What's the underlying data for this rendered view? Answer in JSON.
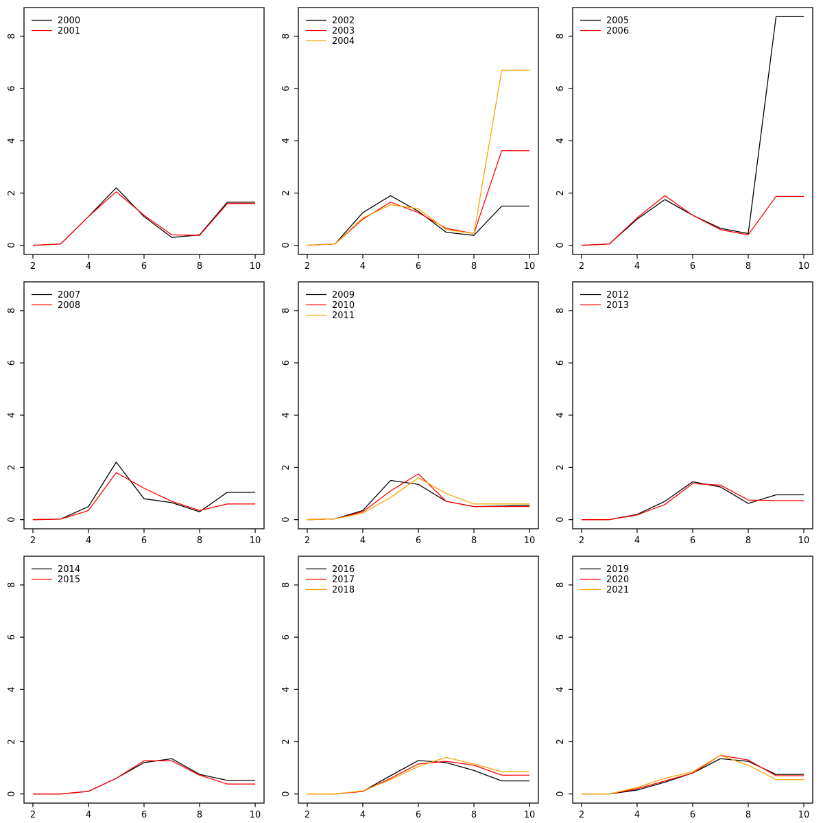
{
  "figure": {
    "background": "#ffffff",
    "axis_color": "#000000",
    "grid": "off",
    "panels": 9
  },
  "chart_data": [
    {
      "type": "line",
      "x": [
        2,
        3,
        4,
        5,
        6,
        7,
        8,
        9,
        10
      ],
      "xlim": [
        2,
        10
      ],
      "ylim": [
        0,
        8.75
      ],
      "x_ticks": [
        2,
        4,
        6,
        8,
        10
      ],
      "y_ticks": [
        0,
        2,
        4,
        6,
        8
      ],
      "legend_position": "topleft",
      "series": [
        {
          "name": "2000",
          "color": "#000000",
          "values": [
            0,
            0.05,
            1.1,
            2.2,
            1.1,
            0.3,
            0.4,
            1.65,
            1.65
          ]
        },
        {
          "name": "2001",
          "color": "#FF0000",
          "values": [
            0,
            0.05,
            1.1,
            2.05,
            1.15,
            0.4,
            0.38,
            1.6,
            1.6
          ]
        }
      ]
    },
    {
      "type": "line",
      "x": [
        2,
        3,
        4,
        5,
        6,
        7,
        8,
        9,
        10
      ],
      "xlim": [
        2,
        10
      ],
      "ylim": [
        0,
        8.75
      ],
      "x_ticks": [
        2,
        4,
        6,
        8,
        10
      ],
      "y_ticks": [
        0,
        2,
        4,
        6,
        8
      ],
      "legend_position": "topleft",
      "series": [
        {
          "name": "2002",
          "color": "#000000",
          "values": [
            0,
            0.05,
            1.25,
            1.9,
            1.3,
            0.5,
            0.38,
            1.5,
            1.5
          ]
        },
        {
          "name": "2003",
          "color": "#FF0000",
          "values": [
            0,
            0.05,
            1.0,
            1.65,
            1.25,
            0.65,
            0.45,
            3.62,
            3.62
          ]
        },
        {
          "name": "2004",
          "color": "#FFA500",
          "values": [
            0,
            0.05,
            1.05,
            1.55,
            1.4,
            0.6,
            0.45,
            6.7,
            6.7
          ]
        }
      ]
    },
    {
      "type": "line",
      "x": [
        2,
        3,
        4,
        5,
        6,
        7,
        8,
        9,
        10
      ],
      "xlim": [
        2,
        10
      ],
      "ylim": [
        0,
        8.75
      ],
      "x_ticks": [
        2,
        4,
        6,
        8,
        10
      ],
      "y_ticks": [
        0,
        2,
        4,
        6,
        8
      ],
      "legend_position": "topleft",
      "series": [
        {
          "name": "2005",
          "color": "#000000",
          "values": [
            0,
            0.05,
            1.0,
            1.75,
            1.15,
            0.65,
            0.45,
            8.75,
            8.75
          ]
        },
        {
          "name": "2006",
          "color": "#FF0000",
          "values": [
            0,
            0.05,
            1.05,
            1.9,
            1.15,
            0.6,
            0.4,
            1.87,
            1.87
          ]
        }
      ]
    },
    {
      "type": "line",
      "x": [
        2,
        3,
        4,
        5,
        6,
        7,
        8,
        9,
        10
      ],
      "xlim": [
        2,
        10
      ],
      "ylim": [
        0,
        8.75
      ],
      "x_ticks": [
        2,
        4,
        6,
        8,
        10
      ],
      "y_ticks": [
        0,
        2,
        4,
        6,
        8
      ],
      "legend_position": "topleft",
      "series": [
        {
          "name": "2007",
          "color": "#000000",
          "values": [
            0,
            0.02,
            0.5,
            2.2,
            0.8,
            0.65,
            0.3,
            1.05,
            1.05
          ]
        },
        {
          "name": "2008",
          "color": "#FF0000",
          "values": [
            0,
            0.02,
            0.35,
            1.8,
            1.2,
            0.7,
            0.35,
            0.6,
            0.6
          ]
        }
      ]
    },
    {
      "type": "line",
      "x": [
        2,
        3,
        4,
        5,
        6,
        7,
        8,
        9,
        10
      ],
      "xlim": [
        2,
        10
      ],
      "ylim": [
        0,
        8.75
      ],
      "x_ticks": [
        2,
        4,
        6,
        8,
        10
      ],
      "y_ticks": [
        0,
        2,
        4,
        6,
        8
      ],
      "legend_position": "topleft",
      "series": [
        {
          "name": "2009",
          "color": "#000000",
          "values": [
            0,
            0.03,
            0.35,
            1.5,
            1.35,
            0.7,
            0.5,
            0.52,
            0.55
          ]
        },
        {
          "name": "2010",
          "color": "#FF0000",
          "values": [
            0,
            0.03,
            0.3,
            1.1,
            1.75,
            0.7,
            0.5,
            0.5,
            0.5
          ]
        },
        {
          "name": "2011",
          "color": "#FFA500",
          "values": [
            0,
            0.03,
            0.25,
            0.85,
            1.6,
            1.0,
            0.6,
            0.6,
            0.6
          ]
        }
      ]
    },
    {
      "type": "line",
      "x": [
        2,
        3,
        4,
        5,
        6,
        7,
        8,
        9,
        10
      ],
      "xlim": [
        2,
        10
      ],
      "ylim": [
        0,
        8.75
      ],
      "x_ticks": [
        2,
        4,
        6,
        8,
        10
      ],
      "y_ticks": [
        0,
        2,
        4,
        6,
        8
      ],
      "legend_position": "topleft",
      "series": [
        {
          "name": "2012",
          "color": "#000000",
          "values": [
            0,
            0,
            0.2,
            0.7,
            1.45,
            1.25,
            0.62,
            0.95,
            0.95
          ]
        },
        {
          "name": "2013",
          "color": "#FF0000",
          "values": [
            0,
            0,
            0.18,
            0.58,
            1.38,
            1.32,
            0.75,
            0.73,
            0.73
          ]
        }
      ]
    },
    {
      "type": "line",
      "x": [
        2,
        3,
        4,
        5,
        6,
        7,
        8,
        9,
        10
      ],
      "xlim": [
        2,
        10
      ],
      "ylim": [
        0,
        8.75
      ],
      "x_ticks": [
        2,
        4,
        6,
        8,
        10
      ],
      "y_ticks": [
        0,
        2,
        4,
        6,
        8
      ],
      "legend_position": "topleft",
      "series": [
        {
          "name": "2014",
          "color": "#000000",
          "values": [
            0,
            0,
            0.1,
            0.6,
            1.2,
            1.35,
            0.75,
            0.52,
            0.52
          ]
        },
        {
          "name": "2015",
          "color": "#FF0000",
          "values": [
            0,
            0,
            0.1,
            0.6,
            1.27,
            1.27,
            0.72,
            0.38,
            0.38
          ]
        }
      ]
    },
    {
      "type": "line",
      "x": [
        2,
        3,
        4,
        5,
        6,
        7,
        8,
        9,
        10
      ],
      "xlim": [
        2,
        10
      ],
      "ylim": [
        0,
        8.75
      ],
      "x_ticks": [
        2,
        4,
        6,
        8,
        10
      ],
      "y_ticks": [
        0,
        2,
        4,
        6,
        8
      ],
      "legend_position": "topleft",
      "series": [
        {
          "name": "2016",
          "color": "#000000",
          "values": [
            0,
            0,
            0.1,
            0.7,
            1.28,
            1.2,
            0.9,
            0.5,
            0.5
          ]
        },
        {
          "name": "2017",
          "color": "#FF0000",
          "values": [
            0,
            0,
            0.1,
            0.6,
            1.15,
            1.25,
            1.1,
            0.72,
            0.72
          ]
        },
        {
          "name": "2018",
          "color": "#FFA500",
          "values": [
            0,
            0,
            0.12,
            0.55,
            1.05,
            1.4,
            1.15,
            0.85,
            0.85
          ]
        }
      ]
    },
    {
      "type": "line",
      "x": [
        2,
        3,
        4,
        5,
        6,
        7,
        8,
        9,
        10
      ],
      "xlim": [
        2,
        10
      ],
      "ylim": [
        0,
        8.75
      ],
      "x_ticks": [
        2,
        4,
        6,
        8,
        10
      ],
      "y_ticks": [
        0,
        2,
        4,
        6,
        8
      ],
      "legend_position": "topleft",
      "series": [
        {
          "name": "2019",
          "color": "#000000",
          "values": [
            0,
            0,
            0.15,
            0.45,
            0.8,
            1.35,
            1.25,
            0.75,
            0.75
          ]
        },
        {
          "name": "2020",
          "color": "#FF0000",
          "values": [
            0,
            0,
            0.2,
            0.5,
            0.8,
            1.48,
            1.3,
            0.7,
            0.7
          ]
        },
        {
          "name": "2021",
          "color": "#FFA500",
          "values": [
            0,
            0,
            0.25,
            0.6,
            0.85,
            1.48,
            1.1,
            0.55,
            0.55
          ]
        }
      ]
    }
  ]
}
